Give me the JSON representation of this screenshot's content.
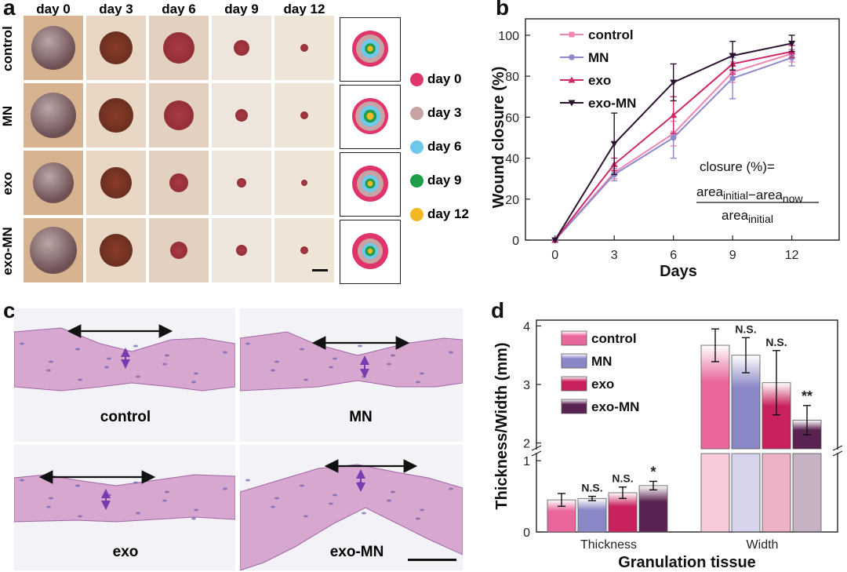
{
  "panel_a": {
    "label": "a",
    "days": [
      "day 0",
      "day 3",
      "day 6",
      "day 9",
      "day 12"
    ],
    "groups": [
      "control",
      "MN",
      "exo",
      "exo-MN"
    ],
    "legend": [
      {
        "label": "day 0",
        "color": "#e0356b"
      },
      {
        "label": "day 3",
        "color": "#c8a3a3"
      },
      {
        "label": "day 6",
        "color": "#6ec8ea"
      },
      {
        "label": "day 9",
        "color": "#1e9e48"
      },
      {
        "label": "day 12",
        "color": "#f2b824"
      }
    ]
  },
  "panel_b_label": "b",
  "panel_c": {
    "label": "c",
    "images": [
      "control",
      "MN",
      "exo",
      "exo-MN"
    ]
  },
  "panel_d_label": "d",
  "chart_data": [
    {
      "type": "line",
      "title": "",
      "xlabel": "Days",
      "ylabel": "Wound closure (%)",
      "x": [
        0,
        3,
        6,
        9,
        12
      ],
      "xlim": [
        -1.5,
        14.4
      ],
      "ylim": [
        0,
        108
      ],
      "xticks": [
        "0",
        "3",
        "6",
        "9",
        "12"
      ],
      "yticks": [
        "0",
        "20",
        "40",
        "60",
        "80",
        "100"
      ],
      "legend_position": "top-left",
      "series": [
        {
          "name": "control",
          "color": "#ef86b2",
          "values": [
            0,
            33,
            52,
            82,
            91
          ],
          "errors": [
            0,
            3,
            6,
            5,
            4
          ]
        },
        {
          "name": "MN",
          "color": "#8e88cc",
          "values": [
            0,
            32,
            50,
            79,
            89
          ],
          "errors": [
            0,
            3,
            10,
            10,
            4
          ]
        },
        {
          "name": "exo",
          "color": "#cd2a68",
          "values": [
            0,
            37,
            61,
            86,
            92
          ],
          "errors": [
            0,
            3,
            9,
            5,
            3
          ]
        },
        {
          "name": "exo-MN",
          "color": "#2c1230",
          "values": [
            0,
            47,
            77,
            90,
            96
          ],
          "errors": [
            0,
            15,
            9,
            7,
            4
          ]
        }
      ],
      "annotation": {
        "prefix": "closure (%)=",
        "num_a": "area",
        "num_a_sub": "initial",
        "minus": "−",
        "num_b": "area",
        "num_b_sub": "now",
        "den": "area",
        "den_sub": "initial"
      }
    },
    {
      "type": "bar",
      "title": "",
      "xlabel": "Granulation tissue",
      "ylabel": "Thickness/Width (mm)",
      "categories": [
        "Thickness",
        "Width"
      ],
      "axis_break": [
        1.1,
        1.9
      ],
      "ylim_lower": [
        0,
        1.1
      ],
      "ylim_upper": [
        1.9,
        4.1
      ],
      "yticks_lower": [
        "0",
        "1"
      ],
      "yticks_upper": [
        "2",
        "3",
        "4"
      ],
      "legend_position": "top-left",
      "series": [
        {
          "name": "control",
          "color": "#e9679c",
          "values": [
            0.45,
            3.67
          ],
          "errors": [
            0.09,
            0.28
          ],
          "sig": [
            "",
            ""
          ]
        },
        {
          "name": "MN",
          "color": "#8a87c6",
          "values": [
            0.47,
            3.5
          ],
          "errors": [
            0.03,
            0.3
          ],
          "sig": [
            "N.S.",
            "N.S."
          ]
        },
        {
          "name": "exo",
          "color": "#c8215e",
          "values": [
            0.55,
            3.03
          ],
          "errors": [
            0.08,
            0.55
          ],
          "sig": [
            "N.S.",
            "N.S."
          ]
        },
        {
          "name": "exo-MN",
          "color": "#5a2250",
          "values": [
            0.65,
            2.39
          ],
          "errors": [
            0.06,
            0.25
          ],
          "sig": [
            "*",
            "**"
          ]
        }
      ]
    }
  ]
}
